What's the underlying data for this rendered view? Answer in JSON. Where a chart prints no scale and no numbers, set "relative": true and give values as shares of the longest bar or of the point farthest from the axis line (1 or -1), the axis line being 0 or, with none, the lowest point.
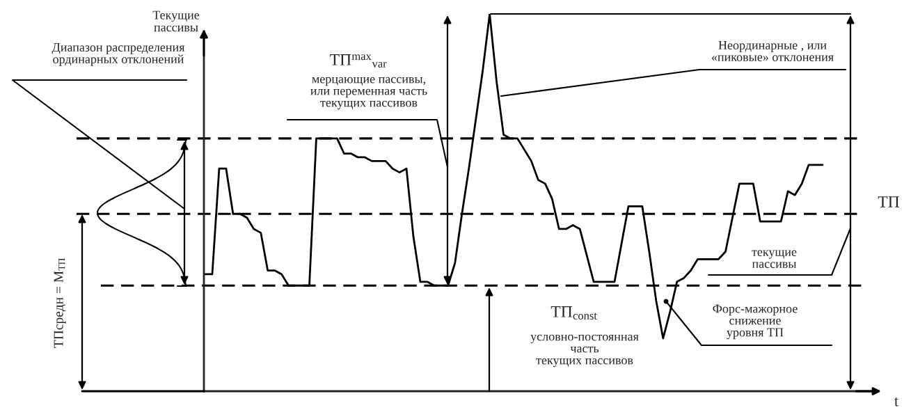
{
  "chart_data": {
    "type": "line",
    "relative": true,
    "xlabel": "t",
    "ylabel": "Текущие\nпассивы",
    "categories": [
      null,
      null,
      null,
      null,
      null,
      null,
      null,
      null,
      null,
      null,
      null,
      null,
      null,
      null,
      null,
      null,
      null,
      null,
      null,
      null,
      null,
      null,
      null,
      null,
      null,
      null,
      null,
      null,
      null,
      null,
      null,
      null,
      null,
      null,
      null,
      null,
      null,
      null,
      null,
      null,
      null,
      null,
      null,
      null,
      null,
      null,
      null,
      null,
      null,
      null,
      null,
      null,
      null,
      null,
      null,
      null,
      null,
      null,
      null,
      null,
      null,
      null,
      null,
      null,
      null,
      null,
      null,
      null,
      null,
      null,
      null,
      null,
      null,
      null,
      null,
      null,
      null,
      null,
      null,
      null,
      null,
      null,
      null,
      null,
      null,
      null,
      null,
      null,
      null,
      null
    ],
    "series": [
      {
        "color": "#000000",
        "values": [
          0.31,
          0.31,
          0.59,
          0.59,
          0.47,
          0.47,
          0.46,
          0.43,
          0.42,
          0.32,
          0.32,
          0.31,
          0.28,
          0.28,
          0.28,
          0.28,
          0.67,
          0.67,
          0.67,
          0.67,
          0.63,
          0.63,
          0.62,
          0.62,
          0.61,
          0.61,
          0.61,
          0.59,
          0.58,
          0.59,
          0.41,
          0.29,
          0.29,
          0.28,
          0.28,
          0.28,
          0.34,
          0.47,
          0.59,
          0.72,
          0.85,
          1.0,
          0.82,
          0.68,
          0.67,
          0.67,
          0.64,
          0.61,
          0.56,
          0.55,
          0.51,
          0.43,
          0.43,
          0.44,
          0.43,
          0.36,
          0.29,
          0.29,
          0.29,
          0.29,
          0.39,
          0.49,
          0.49,
          0.49,
          0.37,
          0.24,
          0.14,
          0.21,
          0.29,
          0.3,
          0.32,
          0.35,
          0.35,
          0.35,
          0.35,
          0.37,
          0.46,
          0.55,
          0.55,
          0.55,
          0.45,
          0.45,
          0.45,
          0.45,
          0.53,
          0.52,
          0.55,
          0.6,
          0.6,
          0.6
        ]
      }
    ],
    "ref_lines": [
      {
        "axis": "y",
        "value": 0.67,
        "line_style": "dashed"
      },
      {
        "axis": "y",
        "value": 0.47,
        "line_style": "dashed"
      },
      {
        "axis": "y",
        "value": 0.28,
        "line_style": "dashed"
      },
      {
        "axis": "y",
        "value": 1.0,
        "line_style": "solid"
      }
    ],
    "annotations": [
      "Диапазон распределения\nординарных отклонений",
      "ТП$^{max}$$_{var}$",
      "мерцающие пассивы,\nили переменная часть\nтекущих пассивов",
      "Неординарные , или\n«пиковые» отклонения",
      "ТП",
      "текущие\nпассивы",
      "ТП$_{const}$",
      "условно-постоянная\nчасть\nтекущих пассивов",
      "Форс-мажорное\nснижение\nуровня ТП",
      "ТПсредн = M$_{ТП}$"
    ]
  }
}
